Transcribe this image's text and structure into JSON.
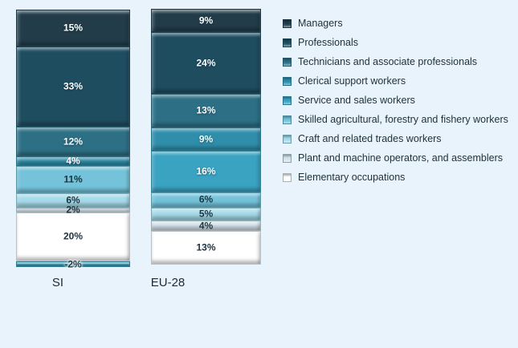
{
  "chart_data": {
    "type": "bar",
    "subtype": "100-percent-stacked-column",
    "title": "",
    "xlabel": "",
    "ylabel": "",
    "grid": false,
    "legend_position": "right",
    "background_color": "#e9f3fb",
    "value_suffix": "%",
    "categories": [
      "SI",
      "EU-28"
    ],
    "series": [
      {
        "name": "Managers",
        "color": "#223c4a",
        "label_tone": "light",
        "values": [
          15,
          9
        ]
      },
      {
        "name": "Professionals",
        "color": "#1e4d60",
        "label_tone": "light",
        "values": [
          33,
          24
        ]
      },
      {
        "name": "Technicians and associate professionals",
        "color": "#2d7086",
        "label_tone": "light",
        "values": [
          12,
          13
        ]
      },
      {
        "name": "Clerical support workers",
        "color": "#2f8fab",
        "label_tone": "light",
        "values": [
          4,
          9
        ]
      },
      {
        "name": "Service and sales workers",
        "color": "#3aa3c2",
        "label_tone": "light",
        "values": [
          -2,
          16
        ]
      },
      {
        "name": "Skilled agricultural, forestry and fishery workers",
        "color": "#74c3da",
        "label_tone": "dark",
        "values": [
          11,
          6
        ]
      },
      {
        "name": "Craft and related trades workers",
        "color": "#a6dbea",
        "label_tone": "dark",
        "values": [
          6,
          5
        ]
      },
      {
        "name": "Plant and machine operators, and assemblers",
        "color": "#d5e3eb",
        "label_tone": "dark",
        "values": [
          2,
          4
        ]
      },
      {
        "name": "Elementary occupations",
        "color": "#ffffff",
        "label_tone": "dark",
        "values": [
          20,
          13
        ]
      }
    ]
  }
}
